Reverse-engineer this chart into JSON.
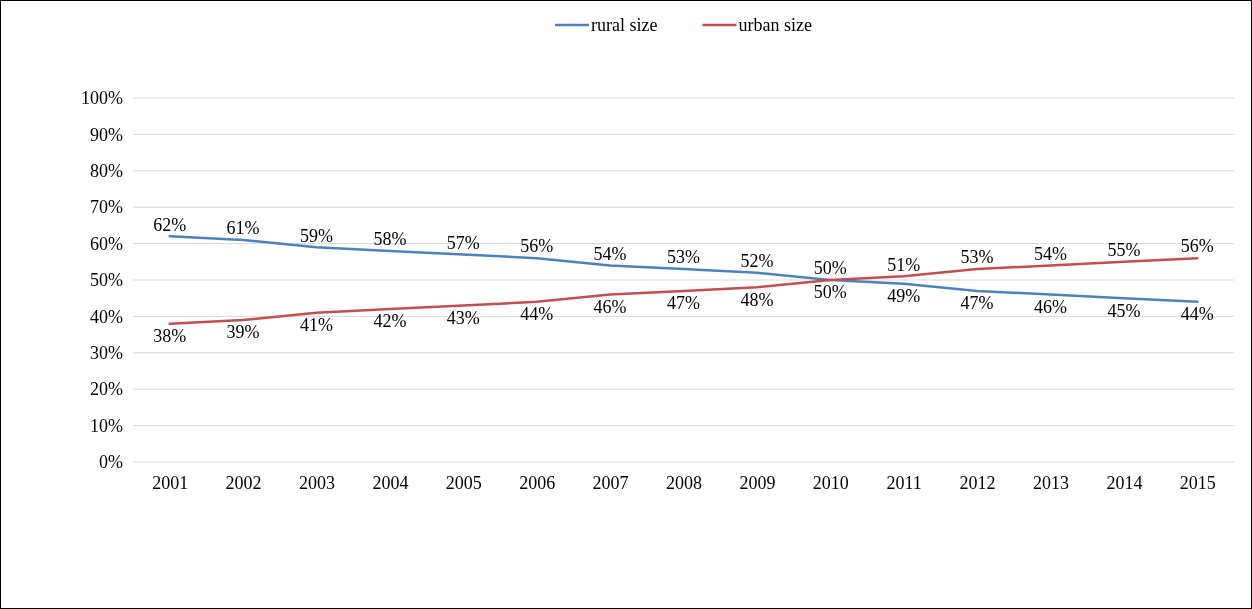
{
  "chart_data": {
    "type": "line",
    "categories": [
      "2001",
      "2002",
      "2003",
      "2004",
      "2005",
      "2006",
      "2007",
      "2008",
      "2009",
      "2010",
      "2011",
      "2012",
      "2013",
      "2014",
      "2015"
    ],
    "series": [
      {
        "name": "rural size",
        "color": "#4f81bd",
        "values": [
          62,
          61,
          59,
          58,
          57,
          56,
          54,
          53,
          52,
          50,
          49,
          47,
          46,
          45,
          44
        ],
        "value_labels": [
          "62%",
          "61%",
          "59%",
          "58%",
          "57%",
          "56%",
          "54%",
          "53%",
          "52%",
          "50%",
          "49%",
          "47%",
          "46%",
          "45%",
          "44%"
        ]
      },
      {
        "name": "urban size",
        "color": "#c0504d",
        "values": [
          38,
          39,
          41,
          42,
          43,
          44,
          46,
          47,
          48,
          50,
          51,
          53,
          54,
          55,
          56
        ],
        "value_labels": [
          "38%",
          "39%",
          "41%",
          "42%",
          "43%",
          "44%",
          "46%",
          "47%",
          "48%",
          "50%",
          "51%",
          "53%",
          "54%",
          "55%",
          "56%"
        ]
      }
    ],
    "ylim": [
      0,
      100
    ],
    "yticks": [
      {
        "value": 0,
        "label": "0%"
      },
      {
        "value": 10,
        "label": "10%"
      },
      {
        "value": 20,
        "label": "20%"
      },
      {
        "value": 30,
        "label": "30%"
      },
      {
        "value": 40,
        "label": "40%"
      },
      {
        "value": 50,
        "label": "50%"
      },
      {
        "value": 60,
        "label": "60%"
      },
      {
        "value": 70,
        "label": "70%"
      },
      {
        "value": 80,
        "label": "80%"
      },
      {
        "value": 90,
        "label": "90%"
      },
      {
        "value": 100,
        "label": "100%"
      }
    ],
    "grid": "y",
    "legend": "top",
    "marker": "none",
    "line_style": "solid"
  }
}
